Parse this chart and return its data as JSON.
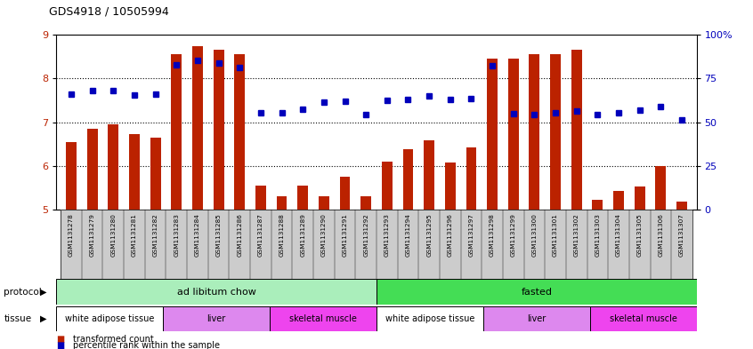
{
  "title": "GDS4918 / 10505994",
  "samples": [
    "GSM1131278",
    "GSM1131279",
    "GSM1131280",
    "GSM1131281",
    "GSM1131282",
    "GSM1131283",
    "GSM1131284",
    "GSM1131285",
    "GSM1131286",
    "GSM1131287",
    "GSM1131288",
    "GSM1131289",
    "GSM1131290",
    "GSM1131291",
    "GSM1131292",
    "GSM1131293",
    "GSM1131294",
    "GSM1131295",
    "GSM1131296",
    "GSM1131297",
    "GSM1131298",
    "GSM1131299",
    "GSM1131300",
    "GSM1131301",
    "GSM1131302",
    "GSM1131303",
    "GSM1131304",
    "GSM1131305",
    "GSM1131306",
    "GSM1131307"
  ],
  "bar_values": [
    6.55,
    6.85,
    6.95,
    6.72,
    6.65,
    8.55,
    8.75,
    8.65,
    8.55,
    5.55,
    5.3,
    5.55,
    5.3,
    5.75,
    5.3,
    6.1,
    6.38,
    6.58,
    6.08,
    6.42,
    8.45,
    8.45,
    8.55,
    8.55,
    8.65,
    5.22,
    5.42,
    5.52,
    6.0,
    5.18
  ],
  "dot_values": [
    7.65,
    7.72,
    7.72,
    7.62,
    7.65,
    8.32,
    8.42,
    8.35,
    8.25,
    7.22,
    7.22,
    7.3,
    7.45,
    7.48,
    7.18,
    7.5,
    7.52,
    7.6,
    7.52,
    7.55,
    8.3,
    7.2,
    7.18,
    7.22,
    7.25,
    7.18,
    7.22,
    7.28,
    7.35,
    7.05
  ],
  "ylim": [
    5,
    9
  ],
  "yticks_left": [
    5,
    6,
    7,
    8,
    9
  ],
  "yticks_right": [
    0,
    25,
    50,
    75,
    100
  ],
  "ytick_right_labels": [
    "0%",
    "25",
    "50",
    "75",
    "100%"
  ],
  "bar_color": "#BB2200",
  "dot_color": "#0000BB",
  "protocol_groups": [
    {
      "label": "ad libitum chow",
      "start": 0,
      "end": 15,
      "color": "#AAEEBB"
    },
    {
      "label": "fasted",
      "start": 15,
      "end": 30,
      "color": "#44DD55"
    }
  ],
  "tissue_groups": [
    {
      "label": "white adipose tissue",
      "start": 0,
      "end": 5,
      "color": "#FFFFFF"
    },
    {
      "label": "liver",
      "start": 5,
      "end": 10,
      "color": "#DD88EE"
    },
    {
      "label": "skeletal muscle",
      "start": 10,
      "end": 15,
      "color": "#EE44EE"
    },
    {
      "label": "white adipose tissue",
      "start": 15,
      "end": 20,
      "color": "#FFFFFF"
    },
    {
      "label": "liver",
      "start": 20,
      "end": 25,
      "color": "#DD88EE"
    },
    {
      "label": "skeletal muscle",
      "start": 25,
      "end": 30,
      "color": "#EE44EE"
    }
  ]
}
